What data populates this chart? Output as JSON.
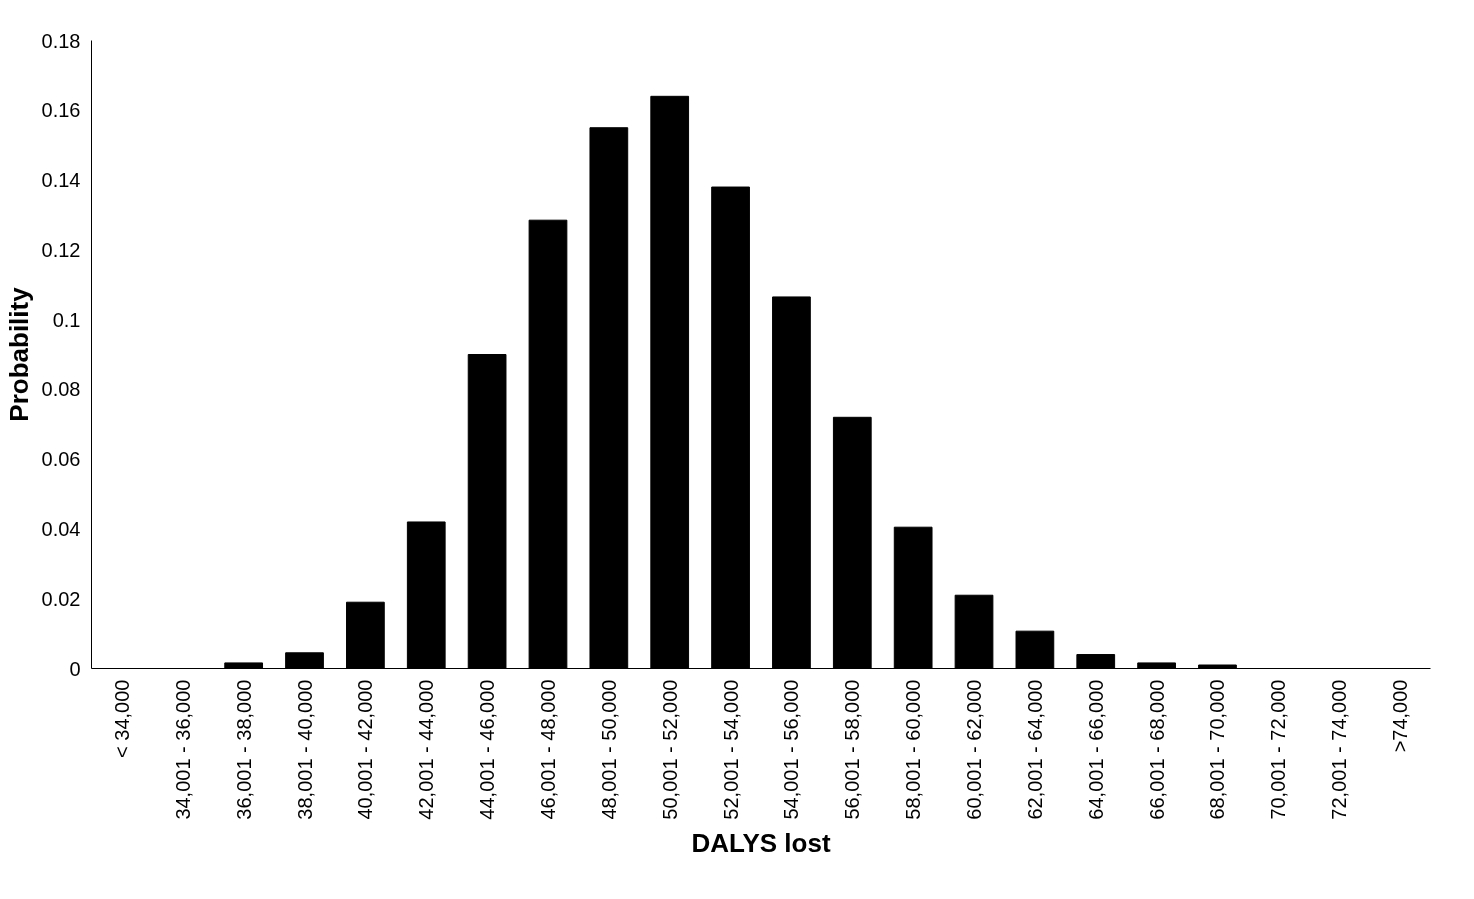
{
  "chart_data": {
    "type": "bar",
    "xlabel": "DALYS lost",
    "ylabel": "Probability",
    "categories": [
      "< 34,000",
      "34,001 - 36,000",
      "36,001 - 38,000",
      "38,001 - 40,000",
      "40,001 - 42,000",
      "42,001 - 44,000",
      "44,001 - 46,000",
      "46,001 - 48,000",
      "48,001 - 50,000",
      "50,001 - 52,000",
      "52,001 - 54,000",
      "54,001 - 56,000",
      "56,001 - 58,000",
      "58,001 - 60,000",
      "60,001 - 62,000",
      "62,001 - 64,000",
      "64,001 - 66,000",
      "66,001 - 68,000",
      "68,001 - 70,000",
      "70,001 - 72,000",
      "72,001 - 74,000",
      ">74,000"
    ],
    "values": [
      0,
      0,
      0.0016,
      0.0045,
      0.019,
      0.042,
      0.09,
      0.1285,
      0.155,
      0.164,
      0.138,
      0.1065,
      0.072,
      0.0405,
      0.021,
      0.0107,
      0.004,
      0.0016,
      0.001,
      0,
      0,
      0
    ],
    "color": "#000000",
    "ylim": [
      0,
      0.18
    ],
    "yticks": [
      0,
      0.02,
      0.04,
      0.06,
      0.08,
      0.1,
      0.12,
      0.14,
      0.16,
      0.18
    ],
    "grid": false
  }
}
